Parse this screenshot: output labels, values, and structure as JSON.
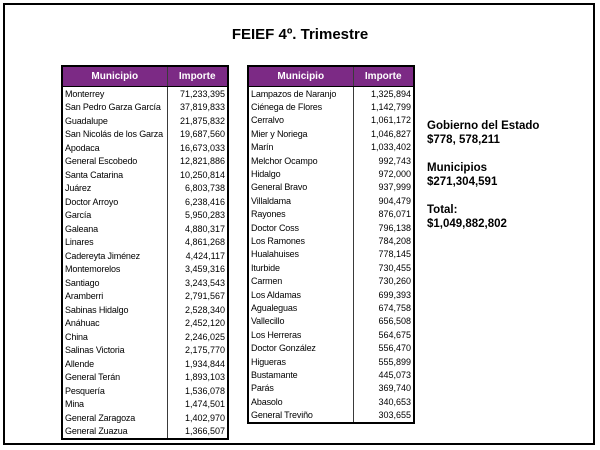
{
  "title": "FEIEF 4º. Trimestre",
  "colors": {
    "header_bg": "#7C2A85",
    "header_text": "#FFFFFF",
    "border": "#000000"
  },
  "tables": [
    {
      "headers": [
        "Municipio",
        "Importe"
      ],
      "rows": [
        [
          "Monterrey",
          "71,233,395"
        ],
        [
          "San Pedro Garza García",
          "37,819,833"
        ],
        [
          "Guadalupe",
          "21,875,832"
        ],
        [
          "San Nicolás de los Garza",
          "19,687,560"
        ],
        [
          "Apodaca",
          "16,673,033"
        ],
        [
          "General Escobedo",
          "12,821,886"
        ],
        [
          "Santa Catarina",
          "10,250,814"
        ],
        [
          "Juárez",
          "6,803,738"
        ],
        [
          "Doctor Arroyo",
          "6,238,416"
        ],
        [
          "García",
          "5,950,283"
        ],
        [
          "Galeana",
          "4,880,317"
        ],
        [
          "Linares",
          "4,861,268"
        ],
        [
          "Cadereyta Jiménez",
          "4,424,117"
        ],
        [
          "Montemorelos",
          "3,459,316"
        ],
        [
          "Santiago",
          "3,243,543"
        ],
        [
          "Aramberri",
          "2,791,567"
        ],
        [
          "Sabinas Hidalgo",
          "2,528,340"
        ],
        [
          "Anáhuac",
          "2,452,120"
        ],
        [
          "China",
          "2,246,025"
        ],
        [
          "Salinas Victoria",
          "2,175,770"
        ],
        [
          "Allende",
          "1,934,844"
        ],
        [
          "General Terán",
          "1,893,103"
        ],
        [
          "Pesquería",
          "1,536,078"
        ],
        [
          "Mina",
          "1,474,501"
        ],
        [
          "General Zaragoza",
          "1,402,970"
        ],
        [
          "General Zuazua",
          "1,366,507"
        ]
      ]
    },
    {
      "headers": [
        "Municipio",
        "Importe"
      ],
      "rows": [
        [
          "Lampazos de Naranjo",
          "1,325,894"
        ],
        [
          "Ciénega de Flores",
          "1,142,799"
        ],
        [
          "Cerralvo",
          "1,061,172"
        ],
        [
          "Mier y Noriega",
          "1,046,827"
        ],
        [
          "Marín",
          "1,033,402"
        ],
        [
          "Melchor Ocampo",
          "992,743"
        ],
        [
          "Hidalgo",
          "972,000"
        ],
        [
          "General Bravo",
          "937,999"
        ],
        [
          "Villaldama",
          "904,479"
        ],
        [
          "Rayones",
          "876,071"
        ],
        [
          "Doctor Coss",
          "796,138"
        ],
        [
          "Los Ramones",
          "784,208"
        ],
        [
          "Hualahuises",
          "778,145"
        ],
        [
          "Iturbide",
          "730,455"
        ],
        [
          "Carmen",
          "730,260"
        ],
        [
          "Los Aldamas",
          "699,393"
        ],
        [
          "Agualeguas",
          "674,758"
        ],
        [
          "Vallecillo",
          "656,508"
        ],
        [
          "Los Herreras",
          "564,675"
        ],
        [
          "Doctor González",
          "556,470"
        ],
        [
          "Higueras",
          "555,899"
        ],
        [
          "Bustamante",
          "445,073"
        ],
        [
          "Parás",
          "369,740"
        ],
        [
          "Abasolo",
          "340,653"
        ],
        [
          "General Treviño",
          "303,655"
        ]
      ]
    }
  ],
  "summary": [
    {
      "label": "Gobierno del Estado",
      "value": "$778, 578,211"
    },
    {
      "label": "Municipios",
      "value": "$271,304,591"
    },
    {
      "label": "Total:",
      "value": "$1,049,882,802"
    }
  ]
}
